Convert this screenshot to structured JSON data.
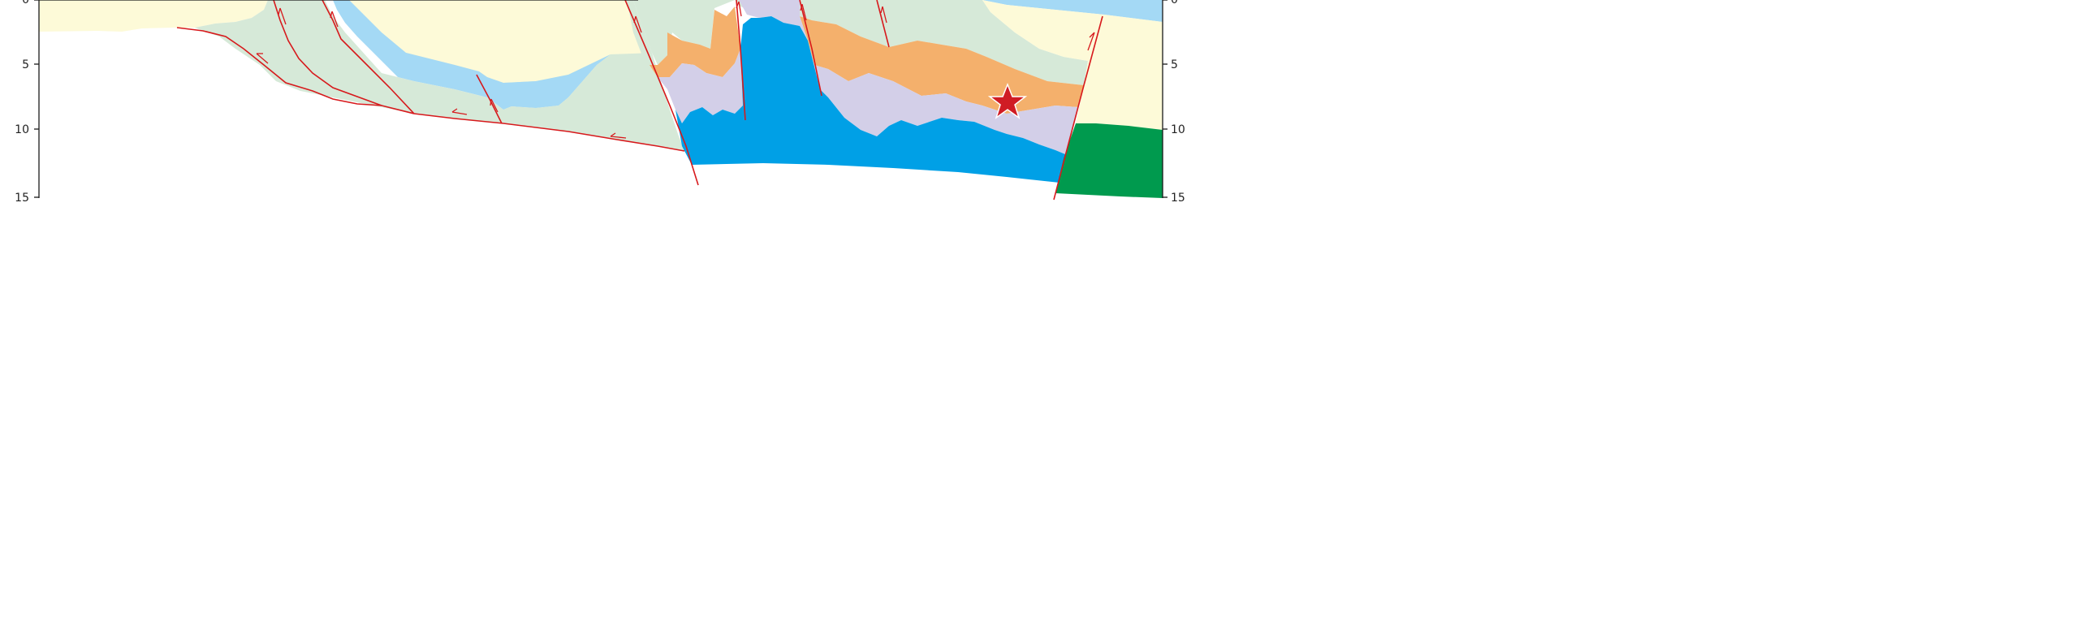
{
  "figure": {
    "description_free": true,
    "colors": {
      "pale_yellow": "#fdfad8",
      "pale_green": "#d6e9d8",
      "light_blue": "#a4d9f5",
      "lavender": "#d3cfe8",
      "orange": "#f4b06c",
      "bright_blue": "#00a0e6",
      "dark_green": "#009a4e",
      "fault_red": "#d7191c",
      "star_red": "#d01c24",
      "axis_black": "#1a1a1a"
    },
    "left_axis": {
      "ticks": [
        "0",
        "5",
        "10",
        "15"
      ]
    },
    "right_axis": {
      "ticks": [
        "0",
        "5",
        "10",
        "15"
      ]
    },
    "markers": [
      {
        "icon": "star-icon",
        "color": "#d01c24"
      }
    ]
  }
}
